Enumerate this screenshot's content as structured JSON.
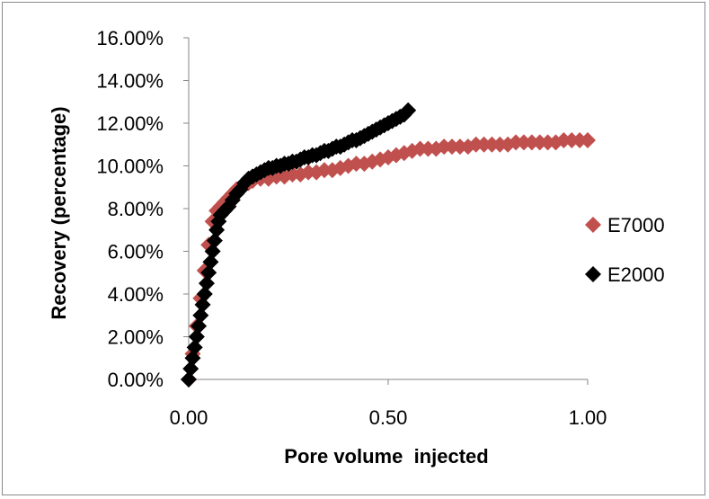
{
  "chart_data": {
    "type": "scatter",
    "title": "",
    "xlabel": "Pore volume  injected",
    "ylabel": "Recovery (percentage)",
    "xlim": [
      0,
      1.0
    ],
    "ylim": [
      0,
      0.16
    ],
    "x_ticks": [
      0,
      0.5,
      1.0
    ],
    "x_tick_labels": [
      "0.00",
      "0.50",
      "1.00"
    ],
    "y_ticks": [
      0,
      0.02,
      0.04,
      0.06,
      0.08,
      0.1,
      0.12,
      0.14,
      0.16
    ],
    "y_tick_labels": [
      "0.00%",
      "2.00%",
      "4.00%",
      "6.00%",
      "8.00%",
      "10.00%",
      "12.00%",
      "14.00%",
      "16.00%"
    ],
    "grid": false,
    "legend_position": "right",
    "series": [
      {
        "name": "E7000",
        "color": "#c0504d",
        "marker": "diamond",
        "points": [
          [
            0.0,
            0.0
          ],
          [
            0.01,
            0.012
          ],
          [
            0.02,
            0.025
          ],
          [
            0.03,
            0.038
          ],
          [
            0.04,
            0.051
          ],
          [
            0.05,
            0.063
          ],
          [
            0.06,
            0.074
          ],
          [
            0.07,
            0.079
          ],
          [
            0.08,
            0.081
          ],
          [
            0.09,
            0.083
          ],
          [
            0.1,
            0.085
          ],
          [
            0.11,
            0.087
          ],
          [
            0.12,
            0.089
          ],
          [
            0.13,
            0.09
          ],
          [
            0.14,
            0.091
          ],
          [
            0.15,
            0.092
          ],
          [
            0.16,
            0.093
          ],
          [
            0.18,
            0.094
          ],
          [
            0.2,
            0.094
          ],
          [
            0.22,
            0.095
          ],
          [
            0.24,
            0.095
          ],
          [
            0.26,
            0.096
          ],
          [
            0.28,
            0.096
          ],
          [
            0.3,
            0.097
          ],
          [
            0.32,
            0.097
          ],
          [
            0.34,
            0.098
          ],
          [
            0.36,
            0.098
          ],
          [
            0.38,
            0.099
          ],
          [
            0.4,
            0.1
          ],
          [
            0.42,
            0.101
          ],
          [
            0.44,
            0.101
          ],
          [
            0.46,
            0.102
          ],
          [
            0.48,
            0.103
          ],
          [
            0.5,
            0.104
          ],
          [
            0.52,
            0.105
          ],
          [
            0.54,
            0.106
          ],
          [
            0.56,
            0.107
          ],
          [
            0.58,
            0.108
          ],
          [
            0.6,
            0.108
          ],
          [
            0.62,
            0.108
          ],
          [
            0.64,
            0.109
          ],
          [
            0.66,
            0.109
          ],
          [
            0.68,
            0.109
          ],
          [
            0.7,
            0.109
          ],
          [
            0.72,
            0.11
          ],
          [
            0.74,
            0.11
          ],
          [
            0.76,
            0.11
          ],
          [
            0.78,
            0.11
          ],
          [
            0.8,
            0.11
          ],
          [
            0.82,
            0.111
          ],
          [
            0.84,
            0.111
          ],
          [
            0.86,
            0.111
          ],
          [
            0.88,
            0.111
          ],
          [
            0.9,
            0.111
          ],
          [
            0.92,
            0.111
          ],
          [
            0.94,
            0.112
          ],
          [
            0.96,
            0.112
          ],
          [
            0.98,
            0.112
          ],
          [
            1.0,
            0.112
          ]
        ]
      },
      {
        "name": "E2000",
        "color": "#000000",
        "marker": "diamond",
        "points": [
          [
            0.0,
            0.0
          ],
          [
            0.005,
            0.005
          ],
          [
            0.01,
            0.01
          ],
          [
            0.015,
            0.015
          ],
          [
            0.02,
            0.02
          ],
          [
            0.025,
            0.025
          ],
          [
            0.03,
            0.03
          ],
          [
            0.035,
            0.035
          ],
          [
            0.04,
            0.04
          ],
          [
            0.045,
            0.045
          ],
          [
            0.05,
            0.05
          ],
          [
            0.055,
            0.055
          ],
          [
            0.06,
            0.06
          ],
          [
            0.065,
            0.065
          ],
          [
            0.07,
            0.07
          ],
          [
            0.075,
            0.074
          ],
          [
            0.08,
            0.077
          ],
          [
            0.09,
            0.079
          ],
          [
            0.1,
            0.081
          ],
          [
            0.11,
            0.084
          ],
          [
            0.12,
            0.087
          ],
          [
            0.13,
            0.089
          ],
          [
            0.14,
            0.092
          ],
          [
            0.15,
            0.094
          ],
          [
            0.16,
            0.095
          ],
          [
            0.17,
            0.096
          ],
          [
            0.18,
            0.097
          ],
          [
            0.19,
            0.098
          ],
          [
            0.2,
            0.099
          ],
          [
            0.21,
            0.099
          ],
          [
            0.22,
            0.1
          ],
          [
            0.23,
            0.1
          ],
          [
            0.24,
            0.101
          ],
          [
            0.25,
            0.101
          ],
          [
            0.26,
            0.102
          ],
          [
            0.27,
            0.102
          ],
          [
            0.28,
            0.103
          ],
          [
            0.29,
            0.104
          ],
          [
            0.3,
            0.104
          ],
          [
            0.31,
            0.105
          ],
          [
            0.32,
            0.105
          ],
          [
            0.33,
            0.106
          ],
          [
            0.34,
            0.107
          ],
          [
            0.35,
            0.107
          ],
          [
            0.36,
            0.108
          ],
          [
            0.37,
            0.109
          ],
          [
            0.38,
            0.109
          ],
          [
            0.39,
            0.11
          ],
          [
            0.4,
            0.111
          ],
          [
            0.41,
            0.112
          ],
          [
            0.42,
            0.112
          ],
          [
            0.43,
            0.113
          ],
          [
            0.44,
            0.114
          ],
          [
            0.45,
            0.115
          ],
          [
            0.46,
            0.116
          ],
          [
            0.47,
            0.117
          ],
          [
            0.48,
            0.118
          ],
          [
            0.49,
            0.119
          ],
          [
            0.5,
            0.12
          ],
          [
            0.51,
            0.121
          ],
          [
            0.52,
            0.122
          ],
          [
            0.53,
            0.123
          ],
          [
            0.54,
            0.124
          ],
          [
            0.55,
            0.126
          ]
        ]
      }
    ]
  }
}
